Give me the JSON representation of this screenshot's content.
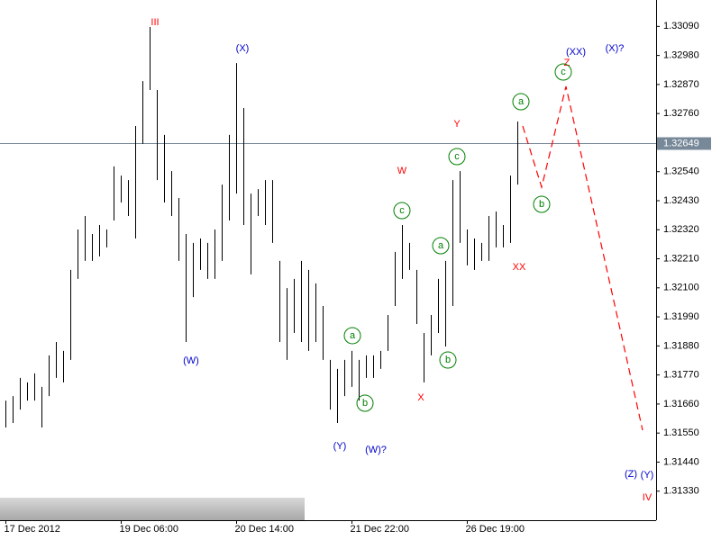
{
  "chart_data": {
    "type": "ohlc",
    "categories": [
      "17 Dec 2012",
      null,
      null,
      null,
      null,
      null,
      null,
      null,
      null,
      null,
      null,
      null,
      null,
      null,
      null,
      null,
      "19 Dec 06:00",
      null,
      null,
      null,
      null,
      null,
      null,
      null,
      null,
      null,
      null,
      null,
      null,
      null,
      null,
      null,
      "20 Dec 14:00",
      null,
      null,
      null,
      null,
      null,
      null,
      null,
      null,
      null,
      null,
      null,
      null,
      null,
      null,
      null,
      "21 Dec 22:00",
      null,
      null,
      null,
      null,
      null,
      null,
      null,
      null,
      null,
      null,
      null,
      null,
      null,
      null,
      null,
      "26 Dec 19:00",
      null,
      null,
      null,
      null,
      null,
      null,
      null
    ],
    "high": [
      1.31673,
      1.3169,
      1.31759,
      1.31742,
      1.31776,
      1.31725,
      1.31844,
      1.31895,
      1.31861,
      1.32168,
      1.32321,
      1.32372,
      1.32304,
      1.32338,
      1.32321,
      1.3256,
      1.32525,
      1.32508,
      1.32713,
      1.32883,
      1.33088,
      1.32849,
      1.32679,
      1.32542,
      1.3244,
      1.32304,
      1.3227,
      1.32287,
      1.3227,
      1.32321,
      1.32491,
      1.32679,
      1.32951,
      1.32781,
      1.32457,
      1.32474,
      1.32508,
      1.32508,
      1.32202,
      1.32099,
      1.32134,
      1.32202,
      1.32168,
      1.32117,
      1.32031,
      1.31827,
      1.31793,
      1.31827,
      1.31861,
      1.31827,
      1.31844,
      1.31844,
      1.31861,
      1.31997,
      1.32236,
      1.32338,
      1.3227,
      1.32168,
      1.31929,
      1.31997,
      1.32134,
      1.32202,
      1.32508,
      1.32542,
      1.32321,
      1.32287,
      1.3227,
      1.32372,
      1.32389,
      1.32338,
      1.32525,
      1.3273
    ],
    "low": [
      1.31571,
      1.31588,
      1.31639,
      1.31673,
      1.31673,
      1.31571,
      1.3169,
      1.31759,
      1.31742,
      1.31827,
      1.32134,
      1.32202,
      1.32202,
      1.32219,
      1.32253,
      1.32355,
      1.32423,
      1.32372,
      1.32287,
      1.32645,
      1.32849,
      1.32508,
      1.32423,
      1.32372,
      1.32202,
      1.31895,
      1.32065,
      1.32168,
      1.32134,
      1.32134,
      1.32202,
      1.32355,
      1.32457,
      1.32338,
      1.32151,
      1.32372,
      1.32338,
      1.3227,
      1.31895,
      1.31827,
      1.31929,
      1.31895,
      1.31861,
      1.31895,
      1.31827,
      1.31639,
      1.31588,
      1.3169,
      1.31725,
      1.31673,
      1.31759,
      1.31759,
      1.31793,
      1.31861,
      1.32031,
      1.32134,
      1.32168,
      1.31963,
      1.31742,
      1.31844,
      1.31929,
      1.31878,
      1.32031,
      1.3227,
      1.32185,
      1.32168,
      1.32202,
      1.32202,
      1.32253,
      1.32253,
      1.3227,
      1.32491
    ],
    "color": "#000000",
    "ylim": [
      1.3122,
      1.3319
    ],
    "yticks": [
      {
        "value": 1.3309,
        "label": "1.33090"
      },
      {
        "value": 1.3298,
        "label": "1.32980"
      },
      {
        "value": 1.3287,
        "label": "1.32870"
      },
      {
        "value": 1.3276,
        "label": "1.32760"
      },
      {
        "value": 1.3265,
        "label": "1.32650"
      },
      {
        "value": 1.3254,
        "label": "1.32540"
      },
      {
        "value": 1.3243,
        "label": "1.32430"
      },
      {
        "value": 1.3232,
        "label": "1.32320"
      },
      {
        "value": 1.3221,
        "label": "1.32210"
      },
      {
        "value": 1.321,
        "label": "1.32100"
      },
      {
        "value": 1.3199,
        "label": "1.31990"
      },
      {
        "value": 1.3188,
        "label": "1.31880"
      },
      {
        "value": 1.3177,
        "label": "1.31770"
      },
      {
        "value": 1.3166,
        "label": "1.31660"
      },
      {
        "value": 1.3155,
        "label": "1.31550"
      },
      {
        "value": 1.3144,
        "label": "1.31440"
      },
      {
        "value": 1.3133,
        "label": "1.31330"
      }
    ],
    "current_price": {
      "value": 1.32649,
      "label": "1.32649"
    },
    "annotations": [
      {
        "text": "III",
        "color": "#ff0000"
      },
      {
        "text": "(X)",
        "color": "#0000cc"
      },
      {
        "text": "(W)",
        "color": "#0000cc"
      },
      {
        "text": "W",
        "color": "#ff0000"
      },
      {
        "text": "Y",
        "color": "#ff0000"
      },
      {
        "text": "X",
        "color": "#ff0000"
      },
      {
        "text": "XX",
        "color": "#ff0000"
      },
      {
        "text": "(Y)",
        "color": "#0000cc"
      },
      {
        "text": "(W)?",
        "color": "#0000cc"
      },
      {
        "text": "(XX)",
        "color": "#0000cc"
      },
      {
        "text": "(X)?",
        "color": "#0000cc"
      },
      {
        "text": "Z",
        "color": "#ff0000"
      },
      {
        "text": "(Z)",
        "color": "#0000cc"
      },
      {
        "text": "(Y)",
        "color": "#0000cc"
      },
      {
        "text": "IV",
        "color": "#ff0000"
      }
    ],
    "circled_labels": [
      {
        "text": "a",
        "color": "#008000"
      },
      {
        "text": "b",
        "color": "#008000"
      },
      {
        "text": "c",
        "color": "#008000"
      },
      {
        "text": "a",
        "color": "#008000"
      },
      {
        "text": "b",
        "color": "#008000"
      },
      {
        "text": "c",
        "color": "#008000"
      },
      {
        "text": "a",
        "color": "#008000"
      },
      {
        "text": "b",
        "color": "#008000"
      },
      {
        "text": "c",
        "color": "#008000"
      }
    ],
    "forecast_color": "#ff0000"
  }
}
